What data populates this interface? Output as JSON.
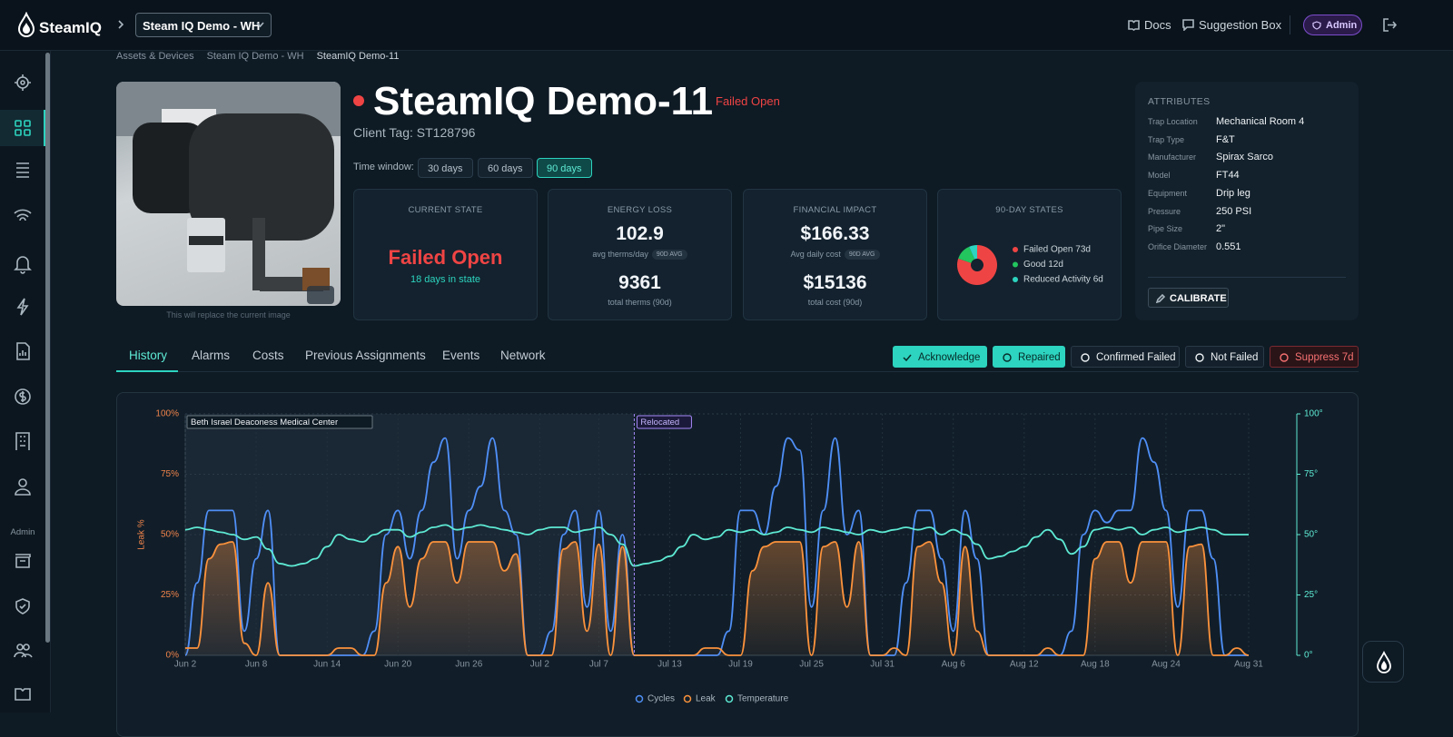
{
  "header": {
    "brand": "SteamIQ",
    "site": "Steam IQ Demo - WH",
    "links": [
      "Docs",
      "Suggestion Box"
    ],
    "role": "Admin"
  },
  "sidebar": {
    "section": "Admin"
  },
  "breadcrumb": [
    "Assets & Devices",
    "Steam IQ Demo - WH",
    "SteamIQ Demo-11"
  ],
  "image_caption": "This will replace the current image",
  "device": {
    "name": "SteamIQ Demo-11",
    "status": "Failed Open",
    "client_tag": "Client Tag: ST128796"
  },
  "time_window": {
    "label": "Time window:",
    "options": [
      "30 days",
      "60 days",
      "90 days"
    ],
    "selected": 2
  },
  "cards": {
    "current_state": {
      "title": "CURRENT STATE",
      "value": "Failed Open",
      "sub": "18 days in state"
    },
    "energy_loss": {
      "title": "ENERGY LOSS",
      "value": "102.9",
      "unit": "avg therms/day",
      "badge": "90D AVG",
      "total": "9361",
      "total_label": "total therms (90d)"
    },
    "financial_impact": {
      "title": "FINANCIAL IMPACT",
      "value": "$166.33",
      "unit": "Avg daily cost",
      "badge": "90D AVG",
      "total": "$15136",
      "total_label": "total cost (90d)"
    },
    "states": {
      "title": "90-DAY STATES",
      "items": [
        {
          "label": "Failed Open 73d",
          "value": 73,
          "color": "#ef4444"
        },
        {
          "label": "Good 12d",
          "value": 12,
          "color": "#22c55e"
        },
        {
          "label": "Reduced Activity 6d",
          "value": 6,
          "color": "#2dd4bf"
        }
      ]
    }
  },
  "attributes": {
    "title": "ATTRIBUTES",
    "rows": [
      [
        "Trap Location",
        "Mechanical Room 4"
      ],
      [
        "Trap Type",
        "F&T"
      ],
      [
        "Manufacturer",
        "Spirax Sarco"
      ],
      [
        "Model",
        "FT44"
      ],
      [
        "Equipment",
        "Drip leg"
      ],
      [
        "Pressure",
        "250 PSI"
      ],
      [
        "Pipe Size",
        "2\""
      ],
      [
        "Orifice Diameter",
        "0.551"
      ]
    ],
    "button": "CALIBRATE"
  },
  "tabs": {
    "items": [
      "History",
      "Alarms",
      "Costs",
      "Previous Assignments",
      "Events",
      "Network"
    ],
    "active": 0
  },
  "actions": [
    "Acknowledge",
    "Repaired",
    "Confirmed Failed",
    "Not Failed",
    "Suppress 7d"
  ],
  "chart_data": {
    "type": "line",
    "y_label": "Leak %",
    "categories": [
      "Jun 2",
      null,
      null,
      null,
      null,
      null,
      "Jun 8",
      null,
      null,
      null,
      null,
      null,
      "Jun 14",
      null,
      null,
      null,
      null,
      null,
      "Jun 20",
      null,
      null,
      null,
      null,
      null,
      "Jun 26",
      null,
      null,
      null,
      null,
      null,
      "Jul 2",
      null,
      null,
      null,
      null,
      "Jul 7",
      null,
      null,
      null,
      null,
      null,
      "Jul 13",
      null,
      null,
      null,
      null,
      null,
      "Jul 19",
      null,
      null,
      null,
      null,
      null,
      "Jul 25",
      null,
      null,
      null,
      null,
      null,
      "Jul 31",
      null,
      null,
      null,
      null,
      null,
      "Aug 6",
      null,
      null,
      null,
      null,
      null,
      "Aug 12",
      null,
      null,
      null,
      null,
      null,
      "Aug 18",
      null,
      null,
      null,
      null,
      null,
      "Aug 24",
      null,
      null,
      null,
      null,
      null,
      null,
      "Aug 31"
    ],
    "ylim": [
      0,
      100
    ],
    "yticks": [
      {
        "value": 0,
        "label": "0%"
      },
      {
        "value": 25,
        "label": "25%"
      },
      {
        "value": 50,
        "label": "50%"
      },
      {
        "value": 75,
        "label": "75%"
      },
      {
        "value": 100,
        "label": "100%"
      }
    ],
    "y2lim": [
      0,
      100
    ],
    "y2ticks": [
      {
        "value": 0,
        "label": "0°"
      },
      {
        "value": 25,
        "label": "25°"
      },
      {
        "value": 50,
        "label": "50°"
      },
      {
        "value": 75,
        "label": "75°"
      },
      {
        "value": 100,
        "label": "100°"
      }
    ],
    "grid": true,
    "annotations": [
      {
        "text": "Beth Israel Deaconess Medical Center",
        "x_start": 0,
        "x_end": 38
      },
      {
        "text": "Relocated",
        "x": 38
      }
    ],
    "series": [
      {
        "name": "Cycles",
        "color": "#4f8ff7",
        "values": [
          0,
          30,
          60,
          60,
          60,
          10,
          40,
          60,
          0,
          0,
          0,
          0,
          0,
          0,
          0,
          0,
          10,
          50,
          60,
          40,
          60,
          80,
          90,
          40,
          60,
          70,
          90,
          60,
          50,
          0,
          0,
          10,
          50,
          60,
          20,
          60,
          10,
          50,
          0,
          0,
          0,
          0,
          0,
          0,
          0,
          0,
          10,
          60,
          60,
          50,
          70,
          90,
          85,
          20,
          60,
          90,
          50,
          60,
          0,
          0,
          0,
          30,
          60,
          60,
          40,
          10,
          60,
          40,
          0,
          0,
          0,
          0,
          0,
          0,
          0,
          10,
          50,
          60,
          55,
          60,
          60,
          90,
          80,
          60,
          20,
          60,
          60,
          40,
          0,
          0,
          0
        ]
      },
      {
        "name": "Leak",
        "color": "#fb923c",
        "area": true,
        "values": [
          3,
          3,
          40,
          46,
          47,
          5,
          0,
          30,
          0,
          0,
          0,
          0,
          0,
          3,
          3,
          0,
          0,
          30,
          45,
          20,
          40,
          47,
          47,
          30,
          47,
          47,
          47,
          35,
          42,
          0,
          0,
          0,
          44,
          47,
          10,
          46,
          0,
          45,
          0,
          0,
          0,
          0,
          0,
          0,
          3,
          3,
          0,
          0,
          35,
          45,
          47,
          47,
          47,
          0,
          45,
          47,
          20,
          47,
          0,
          0,
          3,
          0,
          45,
          47,
          30,
          0,
          45,
          10,
          0,
          0,
          0,
          0,
          0,
          3,
          0,
          0,
          0,
          40,
          47,
          47,
          30,
          47,
          47,
          47,
          0,
          45,
          46,
          0,
          0,
          3,
          0
        ]
      },
      {
        "name": "Temperature",
        "color": "#5eead4",
        "axis": "y2",
        "values": [
          52,
          53,
          52,
          51,
          50,
          48,
          49,
          44,
          38,
          37,
          38,
          40,
          45,
          50,
          48,
          47,
          50,
          52,
          52,
          49,
          51,
          53,
          54,
          52,
          53,
          54,
          53,
          52,
          51,
          50,
          52,
          53,
          53,
          51,
          52,
          53,
          50,
          46,
          37,
          38,
          39,
          41,
          45,
          50,
          48,
          49,
          52,
          51,
          52,
          50,
          51,
          53,
          52,
          51,
          53,
          52,
          51,
          50,
          52,
          51,
          52,
          53,
          52,
          53,
          50,
          52,
          50,
          46,
          40,
          41,
          43,
          45,
          49,
          52,
          48,
          42,
          45,
          52,
          53,
          52,
          53,
          50,
          52,
          53,
          51,
          52,
          53,
          52,
          50,
          50,
          50
        ]
      }
    ]
  }
}
